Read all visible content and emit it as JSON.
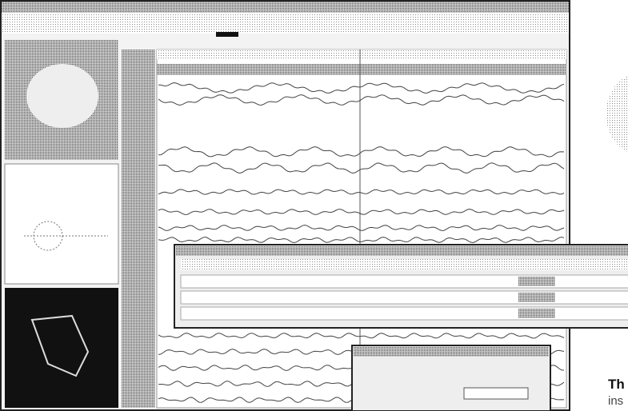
{
  "caption": {
    "heading": "Th",
    "body": "ins"
  }
}
